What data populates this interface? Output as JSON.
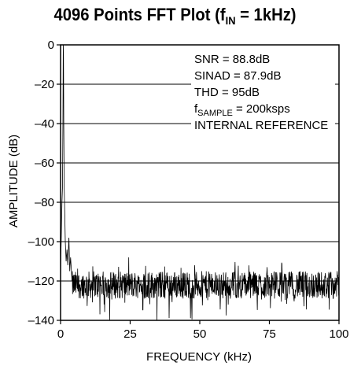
{
  "chart_data": {
    "type": "line",
    "title_main": "4096 Points FFT Plot (f",
    "title_sub": "IN",
    "title_tail": " = 1kHz)",
    "xlabel": "FREQUENCY (kHz)",
    "ylabel": "AMPLITUDE (dB)",
    "xlim": [
      0,
      100
    ],
    "ylim": [
      -140,
      0
    ],
    "x_ticks": [
      0,
      25,
      50,
      75,
      100
    ],
    "x_tick_labels": [
      "0",
      "25",
      "50",
      "75",
      "100"
    ],
    "y_ticks": [
      0,
      -20,
      -40,
      -60,
      -80,
      -100,
      -120,
      -140
    ],
    "y_tick_labels": [
      "0",
      "–20",
      "–40",
      "–60",
      "–80",
      "–100",
      "–120",
      "–140"
    ],
    "grid": "horizontal",
    "annotations": {
      "snr": "SNR = 88.8dB",
      "sinad": "SINAD = 87.9dB",
      "thd": "THD = 95dB",
      "fsample_main": "f",
      "fsample_sub": "SAMPLE",
      "fsample_tail": " = 200ksps",
      "reference": "INTERNAL REFERENCE"
    },
    "series": [
      {
        "points": [
          [
            0,
            -120
          ],
          [
            0.1,
            -108
          ],
          [
            0.3,
            -95
          ],
          [
            0.5,
            -80
          ],
          [
            0.7,
            -72
          ],
          [
            0.85,
            -40
          ],
          [
            0.95,
            -5
          ],
          [
            1.0,
            0
          ],
          [
            1.05,
            -5
          ],
          [
            1.15,
            -40
          ],
          [
            1.3,
            -72
          ],
          [
            1.5,
            -85
          ],
          [
            1.7,
            -100
          ],
          [
            2.0,
            -110
          ],
          [
            2.3,
            -104
          ],
          [
            2.6,
            -112
          ],
          [
            3.0,
            -98
          ],
          [
            3.3,
            -115
          ],
          [
            3.6,
            -108
          ],
          [
            4.0,
            -117
          ]
        ],
        "noise_floor_db": -122,
        "noise_spread_db": 7
      }
    ]
  }
}
